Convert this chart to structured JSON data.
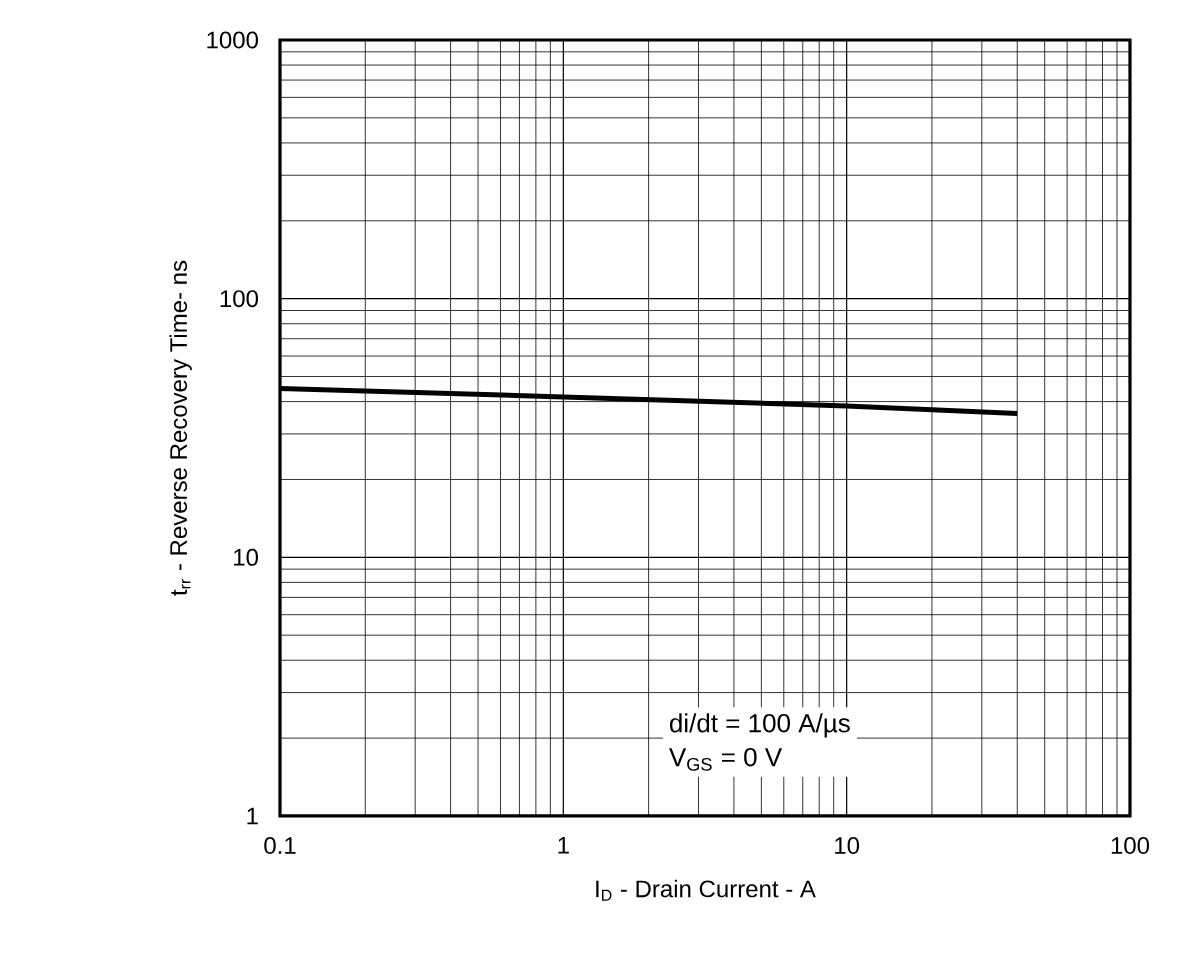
{
  "chart_data": {
    "type": "line",
    "xlabel": "I$_{D}$ - Drain Current - A",
    "ylabel": "t$_{rr}$ - Reverse Recovery Time- ns",
    "x": [
      0.1,
      1,
      10,
      40
    ],
    "series": [
      {
        "color": "#000000",
        "values": [
          44.9,
          41.7,
          38.5,
          36
        ]
      }
    ],
    "log": "xy",
    "grid": true,
    "xlim": [
      0.1,
      100
    ],
    "ylim": [
      1,
      1000
    ],
    "xticks": [
      {
        "value": 0.1,
        "label": "0.1"
      },
      1,
      10,
      100
    ],
    "yticks": [
      1,
      10,
      100,
      1000
    ],
    "annotations": [
      "di/dt = 100 A/µs",
      "V$_{GS}$ = 0 V"
    ]
  }
}
